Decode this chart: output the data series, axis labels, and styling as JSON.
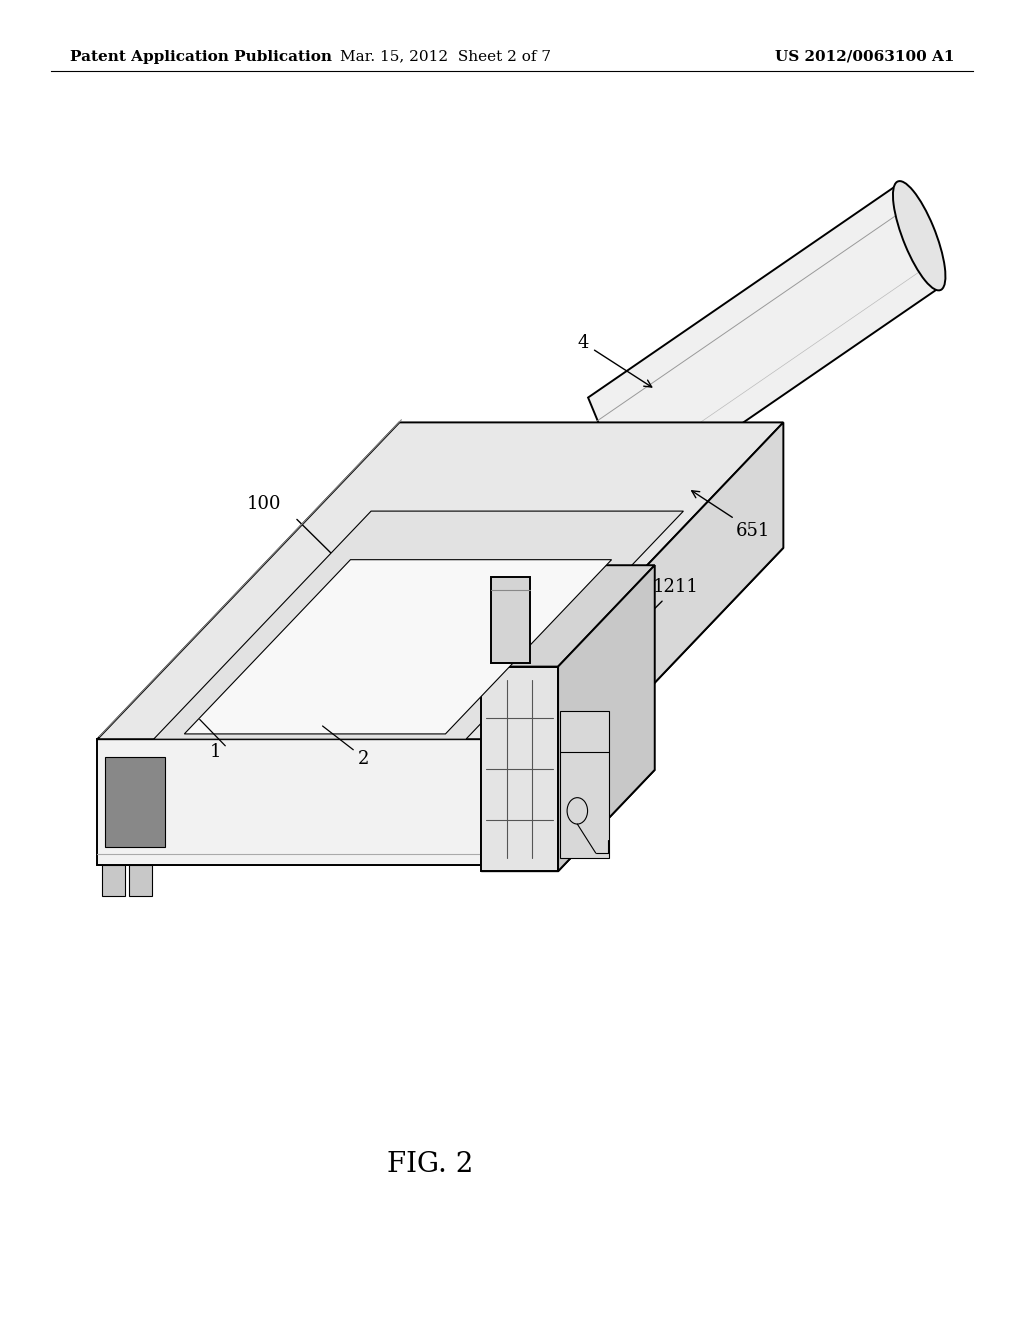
{
  "background_color": "#ffffff",
  "header_left": "Patent Application Publication",
  "header_center": "Mar. 15, 2012  Sheet 2 of 7",
  "header_right": "US 2012/0063100 A1",
  "header_fontsize": 11,
  "figure_label": "FIG. 2",
  "figure_label_fontsize": 20,
  "label_fontsize": 13,
  "lw_main": 1.4,
  "lw_thin": 0.8,
  "lw_thick": 2.0
}
